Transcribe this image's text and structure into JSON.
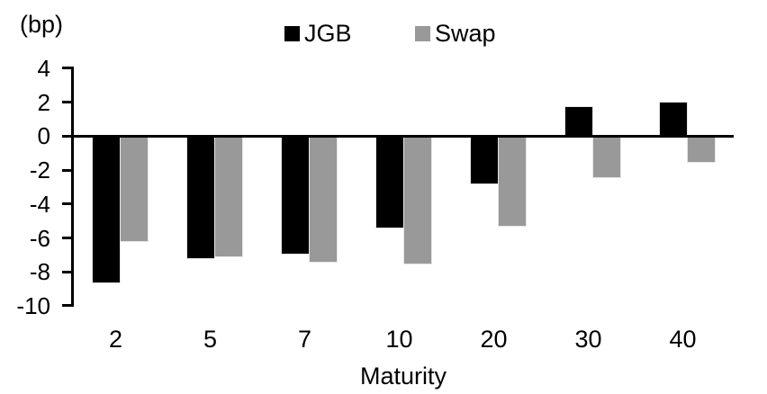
{
  "chart_data": {
    "type": "bar",
    "title": "",
    "ylabel": "(bp)",
    "xlabel": "Maturity",
    "ylim": [
      -10,
      4
    ],
    "yticks": [
      4,
      2,
      0,
      -2,
      -4,
      -6,
      -8,
      -10
    ],
    "categories": [
      "2",
      "5",
      "7",
      "10",
      "20",
      "30",
      "40"
    ],
    "series": [
      {
        "name": "JGB",
        "color": "#000000",
        "values": [
          -8.6,
          -7.2,
          -6.9,
          -5.4,
          -2.8,
          1.7,
          2.0
        ]
      },
      {
        "name": "Swap",
        "color": "#999999",
        "values": [
          -6.2,
          -7.1,
          -7.4,
          -7.5,
          -5.3,
          -2.4,
          -1.5
        ]
      }
    ],
    "legend_position": "top-center",
    "grid": false,
    "axis_color": "#000000",
    "background_color": "#ffffff"
  }
}
